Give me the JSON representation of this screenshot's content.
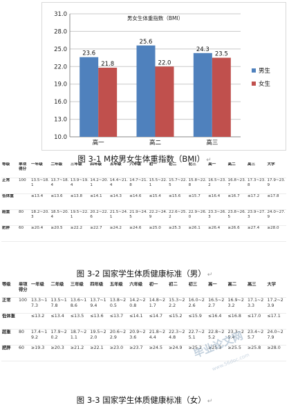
{
  "chart_data": {
    "type": "bar",
    "title": "男女生体重指数（BMI）",
    "categories": [
      "高一",
      "高二",
      "高三"
    ],
    "series": [
      {
        "name": "男生",
        "values": [
          23.6,
          25.6,
          24.3
        ],
        "color": "#4f81bd"
      },
      {
        "name": "女生",
        "values": [
          21.8,
          22.0,
          23.5
        ],
        "color": "#c0504d"
      }
    ],
    "y_ticks": [
      "10.0",
      "13.0",
      "16.0",
      "19.0",
      "22.0",
      "25.0",
      "28.0",
      "31.0"
    ],
    "ylim": [
      10.0,
      31.0
    ],
    "grid": true,
    "legend": "right"
  },
  "captions": {
    "fig1": "图 3-1 M校男女生体重指数（BMI）",
    "fig2": "图 3-2 国家学生体质健康标准（男）",
    "fig3": "图 3-3 国家学生体质健康标准（女）",
    "return_mark": "↵"
  },
  "table_male": {
    "headers": [
      "等级",
      "单项得分",
      "一年级",
      "二年级",
      "三年级",
      "四年级",
      "五年级",
      "六年级",
      "初一",
      "初二",
      "初三",
      "高一",
      "高二",
      "高三",
      "大学"
    ],
    "rows": [
      [
        "正常",
        "100",
        "13.5~18.1",
        "13.7~18.4",
        "13.9~19.4",
        "14.2~20.1",
        "14.4~21.4",
        "14.7~21.8",
        "15.5~22.1",
        "15.7~22.5",
        "15.8~22.8",
        "16.5~23.2",
        "16.8~23.7",
        "17.3~23.8",
        "17.9~23.9"
      ],
      [
        "低体重",
        "",
        "≤13.4",
        "≤13.6",
        "≤13.8",
        "≤14.1",
        "≤14.3",
        "≤14.6",
        "≤15.4",
        "≤15.6",
        "≤15.7",
        "≤16.4",
        "≤16.7",
        "≤17.2",
        "≤17.8"
      ],
      [
        "超重",
        "80",
        "18.2~20.3",
        "18.5~20.4",
        "19.5~22.1",
        "20.2~22.6",
        "21.5~24.1",
        "21.9~24.5",
        "22.2~24.9",
        "22.6~25.2",
        "22.9~26.0",
        "23.3~26.3",
        "23.8~26.5",
        "23.9~27.3",
        "24.0~27.9"
      ],
      [
        "肥胖",
        "60",
        "≥20.4",
        "≥20.5",
        "≥22.2",
        "≥22.7",
        "≥24.2",
        "≥24.6",
        "≥25.0",
        "≥25.3",
        "≥26.1",
        "≥26.4",
        "≥26.6",
        "≥27.4",
        "≥28.0"
      ]
    ]
  },
  "table_female": {
    "headers": [
      "等级",
      "单项得分",
      "一年级",
      "二年级",
      "三年级",
      "四年级",
      "五年级",
      "六年级",
      "初一",
      "初二",
      "初三",
      "高一",
      "高二",
      "高三",
      "大学"
    ],
    "rows": [
      [
        "正常",
        "100",
        "13.3~17.3",
        "13.5~17.8",
        "13.6~18.6",
        "13.7~19.4",
        "13.8~20.5",
        "14.2~20.8",
        "14.8~21.7",
        "15.3~22.2",
        "16.0~22.6",
        "16.5~22.7",
        "16.9~23.2",
        "17.1~23.3",
        "17.2~23.9"
      ],
      [
        "低体重",
        "",
        "≤13.2",
        "≤13.4",
        "≤13.5",
        "≤13.6",
        "≤13.7",
        "≤14.1",
        "≤14.7",
        "≤15.2",
        "≤15.9",
        "≤16.4",
        "≤16.8",
        "≤17.0",
        "≤17.1"
      ],
      [
        "超重",
        "80",
        "17.4~19.2",
        "17.9~20.2",
        "18.7~21.1",
        "19.5~22.0",
        "20.6~22.9",
        "20.9~23.6",
        "21.8~24.4",
        "22.3~24.8",
        "22.7~25.1",
        "22.8~25.2",
        "23.3~25.4",
        "23.4~25.7",
        "24.0~27.9"
      ],
      [
        "肥胖",
        "60",
        "≥19.3",
        "≥20.3",
        "≥21.2",
        "≥22.1",
        "≥23.0",
        "≥23.7",
        "≥24.5",
        "≥24.9",
        "≥25.2",
        "≥25.3",
        "≥25.5",
        "≥25.8",
        "≥28.0"
      ]
    ]
  },
  "watermark": {
    "main": "毕业论文网",
    "sub": "www.56doc.com"
  }
}
